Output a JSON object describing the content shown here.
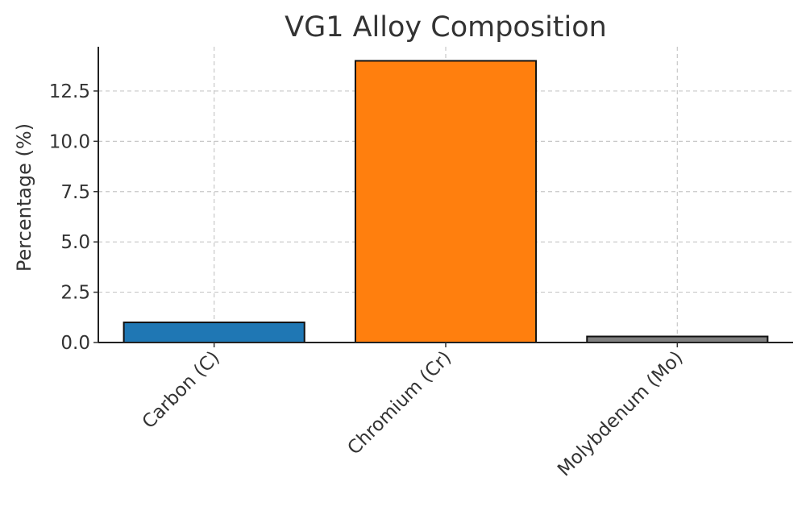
{
  "chart_data": {
    "type": "bar",
    "title": "VG1 Alloy Composition",
    "xlabel": "",
    "ylabel": "Percentage (%)",
    "categories": [
      "Carbon (C)",
      "Chromium (Cr)",
      "Molybdenum (Mo)"
    ],
    "values": [
      1.0,
      14.0,
      0.3
    ],
    "colors": [
      "#1f77b4",
      "#ff7f0e",
      "#808080"
    ],
    "edge_color": "#111111",
    "ylim": [
      0,
      14.7
    ],
    "yticks": [
      0.0,
      2.5,
      5.0,
      7.5,
      10.0,
      12.5
    ],
    "ytick_labels": [
      "0.0",
      "2.5",
      "5.0",
      "7.5",
      "10.0",
      "12.5"
    ],
    "grid": true,
    "x_tick_rotation": 45
  }
}
